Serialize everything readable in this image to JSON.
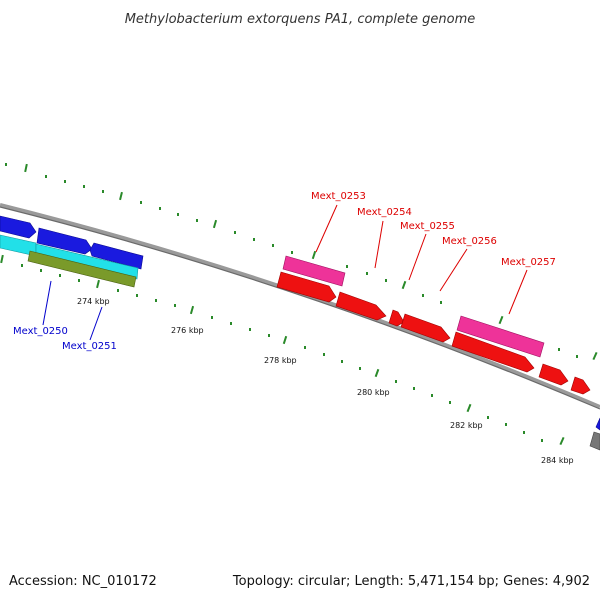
{
  "title": "Methylobacterium extorquens PA1, complete genome",
  "footer": {
    "accession": "Accession: NC_010172",
    "summary": "Topology: circular; Length: 5,471,154 bp; Genes: 4,902"
  },
  "colors": {
    "backbone": "#888888",
    "tick": "#2a8a2a",
    "blue_gene": "#1a1adf",
    "cyan_gene": "#22e0e8",
    "olive_gene": "#7a9a2a",
    "red_gene": "#ee1111",
    "pink_gene": "#ee3399",
    "label_red": "#dd0000",
    "label_blue": "#0000cc"
  },
  "scale_labels": [
    "274 kbp",
    "276 kbp",
    "278 kbp",
    "280 kbp",
    "282 kbp",
    "284 kbp"
  ],
  "gene_labels": {
    "red": [
      "Mext_0253",
      "Mext_0254",
      "Mext_0255",
      "Mext_0256",
      "Mext_0257"
    ],
    "blue": [
      "Mext_0250",
      "Mext_0251"
    ]
  }
}
